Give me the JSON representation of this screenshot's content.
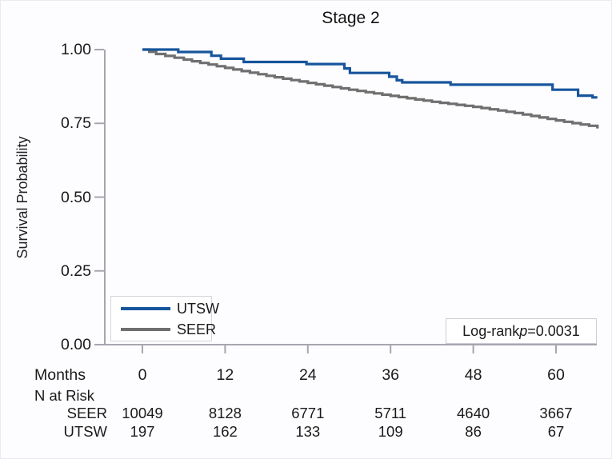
{
  "title": "Stage 2",
  "y_axis": {
    "label": "Survival Probability",
    "tick_labels": [
      "0.00",
      "0.25",
      "0.50",
      "0.75",
      "1.00"
    ]
  },
  "x_axis": {
    "row_label": "Months",
    "tick_labels": [
      "0",
      "12",
      "24",
      "36",
      "48",
      "60"
    ]
  },
  "legend": {
    "items": [
      {
        "label": "UTSW",
        "color": "#17559c"
      },
      {
        "label": "SEER",
        "color": "#6f6f6f"
      }
    ]
  },
  "annotation": {
    "text_prefix": "Log-rank",
    "p_symbol": "p",
    "p_value_text": "=0.0031"
  },
  "risk_table": {
    "header": "N at Risk",
    "rows": [
      {
        "name": "SEER",
        "values": [
          "10049",
          "8128",
          "6771",
          "5711",
          "4640",
          "3667"
        ]
      },
      {
        "name": "UTSW",
        "values": [
          "197",
          "162",
          "133",
          "109",
          "86",
          "67"
        ]
      }
    ]
  },
  "colors": {
    "utsw": "#17559c",
    "seer": "#6f6f6f",
    "axis": "#a6a6ae",
    "text": "#1a1a1a",
    "background": "#fdfdff"
  },
  "chart_data": {
    "type": "line",
    "variant": "kaplan-meier-step",
    "title": "Stage 2",
    "xlabel": "Months",
    "ylabel": "Survival Probability",
    "xlim": [
      0,
      66
    ],
    "ylim": [
      0,
      1
    ],
    "xticks": [
      0,
      12,
      24,
      36,
      48,
      60
    ],
    "yticks": [
      0,
      0.25,
      0.5,
      0.75,
      1
    ],
    "grid": false,
    "legend_position": "inside-bottom-left",
    "annotation": "Log-rank p=0.0031",
    "series": [
      {
        "name": "UTSW",
        "color": "#17559c",
        "step_style": "coarse",
        "points": [
          [
            0,
            1.0
          ],
          [
            5.2,
            0.992
          ],
          [
            10,
            0.979
          ],
          [
            11.4,
            0.969
          ],
          [
            14.7,
            0.958
          ],
          [
            23.8,
            0.951
          ],
          [
            29.3,
            0.936
          ],
          [
            30.1,
            0.921
          ],
          [
            35.8,
            0.908
          ],
          [
            36.9,
            0.896
          ],
          [
            37.7,
            0.889
          ],
          [
            44.7,
            0.881
          ],
          [
            59.5,
            0.864
          ],
          [
            63.2,
            0.844
          ],
          [
            65.3,
            0.838
          ]
        ],
        "end_time": 66
      },
      {
        "name": "SEER",
        "color": "#6f6f6f",
        "step_style": "dense",
        "points": [
          [
            0,
            1.0
          ],
          [
            2,
            0.985
          ],
          [
            6,
            0.966
          ],
          [
            12,
            0.938
          ],
          [
            18,
            0.911
          ],
          [
            24,
            0.887
          ],
          [
            30,
            0.864
          ],
          [
            36,
            0.843
          ],
          [
            42,
            0.823
          ],
          [
            48,
            0.806
          ],
          [
            54,
            0.785
          ],
          [
            60,
            0.76
          ],
          [
            66,
            0.737
          ]
        ],
        "end_time": 66.2
      }
    ],
    "n_at_risk": {
      "times": [
        0,
        12,
        24,
        36,
        48,
        60
      ],
      "SEER": [
        10049,
        8128,
        6771,
        5711,
        4640,
        3667
      ],
      "UTSW": [
        197,
        162,
        133,
        109,
        86,
        67
      ]
    }
  }
}
